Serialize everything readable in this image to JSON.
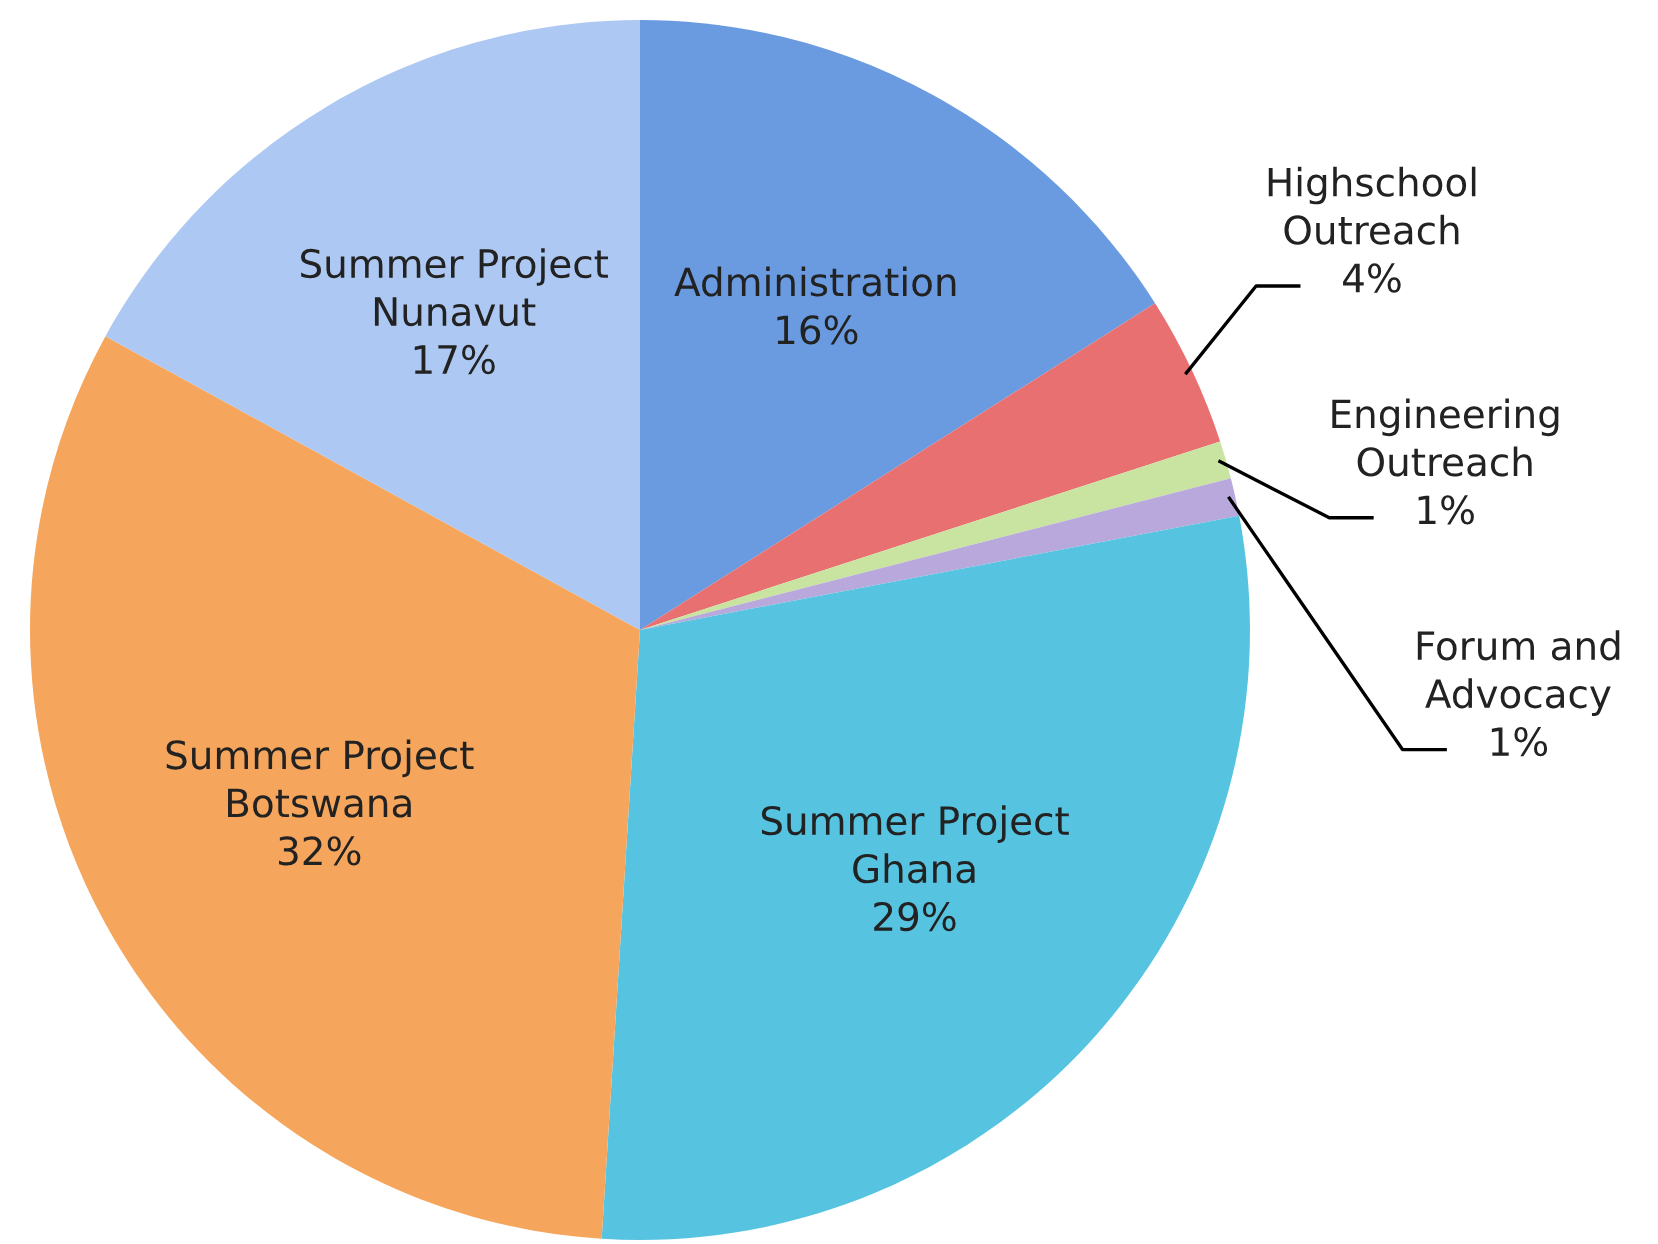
{
  "chart_data": {
    "type": "pie",
    "categories": [
      "Administration",
      "Highschool\nOutreach",
      "Engineering\nOutreach",
      "Forum and\nAdvocacy",
      "Summer Project\nGhana",
      "Summer Project\nBotswana",
      "Summer Project\nNunavut"
    ],
    "values": [
      16,
      4,
      1,
      1,
      29,
      32,
      17
    ],
    "colors": [
      "#6a9be0",
      "#e87070",
      "#c8e4a0",
      "#b8a8dc",
      "#56c4e0",
      "#f6a65c",
      "#adc8f2"
    ],
    "value_labels": [
      "16%",
      "4%",
      "1%",
      "1%",
      "29%",
      "32%",
      "17%"
    ]
  }
}
